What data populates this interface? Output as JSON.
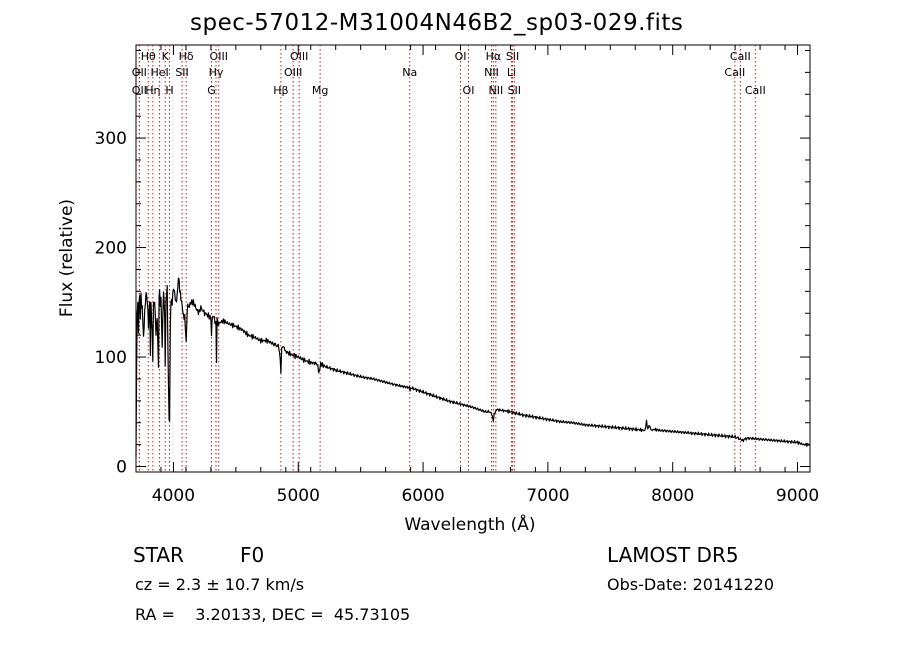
{
  "header": {
    "title": "spec-57012-M31004N46B2_sp03-029.fits"
  },
  "footer": {
    "object_class": "STAR",
    "subclass": "F0",
    "survey": "LAMOST DR5",
    "redshift": "cz = 2.3 ± 10.7 km/s",
    "obs_date": "Obs-Date: 20141220",
    "coords": "RA =    3.20133, DEC =  45.73105"
  },
  "chart_data": {
    "type": "line",
    "title": "spec-57012-M31004N46B2_sp03-029.fits",
    "xlabel": "Wavelength (Å)",
    "ylabel": "Flux (relative)",
    "xlim": [
      3700,
      9100
    ],
    "ylim": [
      -5,
      385
    ],
    "xticks": [
      4000,
      5000,
      6000,
      7000,
      8000,
      9000
    ],
    "yticks": [
      0,
      100,
      200,
      300
    ],
    "grid": false,
    "line_color": "#000000",
    "marker_color": "#b22222",
    "line_markers": [
      {
        "label": "Hθ",
        "x": 3798,
        "row": 0
      },
      {
        "label": "OII",
        "x": 3727,
        "row": 1
      },
      {
        "label": "OII",
        "x": 3727,
        "row": 2
      },
      {
        "label": "Hη",
        "x": 3835,
        "row": 2
      },
      {
        "label": "HeI",
        "x": 3889,
        "row": 1
      },
      {
        "label": "K",
        "x": 3934,
        "row": 0
      },
      {
        "label": "H",
        "x": 3969,
        "row": 2
      },
      {
        "label": "SII",
        "x": 4069,
        "row": 1
      },
      {
        "label": "Hδ",
        "x": 4102,
        "row": 0
      },
      {
        "label": "OIII",
        "x": 4363,
        "row": 0
      },
      {
        "label": "Hγ",
        "x": 4341,
        "row": 1
      },
      {
        "label": "G",
        "x": 4305,
        "row": 2
      },
      {
        "label": "Hβ",
        "x": 4861,
        "row": 2
      },
      {
        "label": "OIII",
        "x": 5007,
        "row": 0
      },
      {
        "label": "OIII",
        "x": 4959,
        "row": 1
      },
      {
        "label": "Mg",
        "x": 5175,
        "row": 2
      },
      {
        "label": "Na",
        "x": 5893,
        "row": 1
      },
      {
        "label": "OI",
        "x": 6300,
        "row": 0
      },
      {
        "label": "OI",
        "x": 6364,
        "row": 2
      },
      {
        "label": "Hα",
        "x": 6563,
        "row": 0
      },
      {
        "label": "NII",
        "x": 6548,
        "row": 1
      },
      {
        "label": "NII",
        "x": 6583,
        "row": 2
      },
      {
        "label": "SII",
        "x": 6717,
        "row": 0
      },
      {
        "label": "Li",
        "x": 6708,
        "row": 1
      },
      {
        "label": "SII",
        "x": 6731,
        "row": 2
      },
      {
        "label": "CaII",
        "x": 8542,
        "row": 0
      },
      {
        "label": "CaII",
        "x": 8498,
        "row": 1
      },
      {
        "label": "CaII",
        "x": 8662,
        "row": 2
      }
    ],
    "series": [
      {
        "x": [
          3700,
          3705,
          3710,
          3715,
          3720,
          3725,
          3730,
          3735,
          3740,
          3745,
          3750,
          3760,
          3770,
          3780,
          3790,
          3800,
          3810,
          3815,
          3820,
          3830,
          3835,
          3840,
          3850,
          3860,
          3870,
          3880,
          3885,
          3889,
          3895,
          3900,
          3910,
          3920,
          3930,
          3934,
          3940,
          3950,
          3960,
          3965,
          3969,
          3975,
          3980,
          3990,
          4000,
          4010,
          4020,
          4030,
          4040,
          4045,
          4050,
          4060,
          4070,
          4080,
          4090,
          4095,
          4102,
          4110,
          4120,
          4140,
          4160,
          4180,
          4200,
          4220,
          4250,
          4280,
          4300,
          4305,
          4310,
          4320,
          4340,
          4345,
          4350,
          4360,
          4380,
          4400,
          4450,
          4500,
          4550,
          4600,
          4650,
          4700,
          4750,
          4800,
          4840,
          4855,
          4861,
          4867,
          4880,
          4900,
          4950,
          5000,
          5050,
          5100,
          5150,
          5170,
          5175,
          5180,
          5200,
          5300,
          5400,
          5500,
          5600,
          5700,
          5800,
          5890,
          5895,
          5900,
          6000,
          6100,
          6200,
          6300,
          6400,
          6500,
          6540,
          6555,
          6563,
          6570,
          6590,
          6650,
          6700,
          6800,
          6900,
          7000,
          7100,
          7200,
          7300,
          7400,
          7500,
          7600,
          7700,
          7780,
          7790,
          7800,
          7810,
          7830,
          7850,
          7900,
          8000,
          8100,
          8200,
          8300,
          8400,
          8500,
          8540,
          8560,
          8600,
          8700,
          8800,
          8900,
          9000,
          9050,
          9100
        ],
        "y": [
          10,
          95,
          140,
          150,
          120,
          145,
          155,
          130,
          160,
          145,
          150,
          120,
          140,
          155,
          150,
          130,
          155,
          105,
          150,
          120,
          95,
          145,
          150,
          125,
          140,
          90,
          155,
          160,
          145,
          150,
          110,
          165,
          140,
          95,
          150,
          160,
          70,
          45,
          40,
          130,
          155,
          150,
          160,
          155,
          150,
          160,
          175,
          170,
          160,
          150,
          145,
          140,
          140,
          130,
          110,
          140,
          145,
          150,
          150,
          145,
          140,
          145,
          140,
          138,
          135,
          120,
          137,
          138,
          130,
          95,
          135,
          130,
          132,
          133,
          130,
          128,
          125,
          120,
          118,
          115,
          115,
          112,
          110,
          100,
          85,
          108,
          110,
          105,
          102,
          100,
          97,
          95,
          94,
          85,
          90,
          94,
          92,
          88,
          85,
          82,
          80,
          77,
          74,
          72,
          68,
          72,
          68,
          64,
          60,
          57,
          54,
          50,
          50,
          45,
          42,
          48,
          52,
          51,
          50,
          47,
          45,
          43,
          41,
          40,
          38,
          37,
          36,
          35,
          34,
          33,
          42,
          35,
          38,
          33,
          34,
          33,
          32,
          31,
          30,
          29,
          28,
          27,
          25,
          24,
          26,
          25,
          24,
          23,
          22,
          20,
          20
        ]
      }
    ]
  }
}
